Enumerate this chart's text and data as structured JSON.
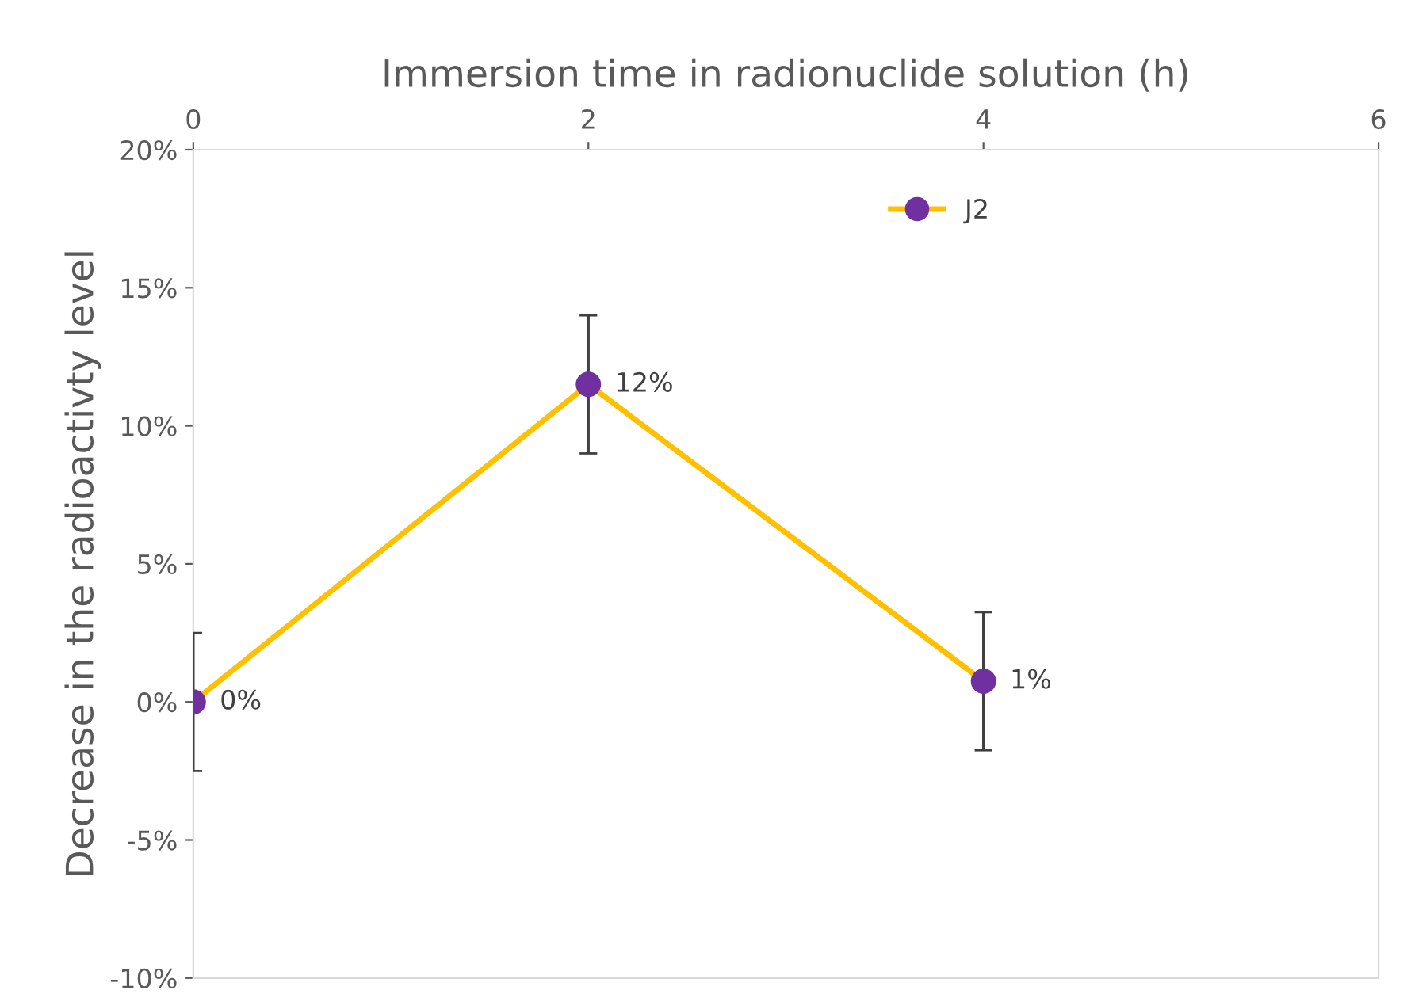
{
  "chart_data": {
    "type": "line",
    "xlabel": "Immersion time in radionuclide solution (h)",
    "ylabel": "Decrease in the radioactivty level",
    "x": [
      0,
      2,
      4
    ],
    "series": [
      {
        "name": "J2",
        "color": "#ffc000",
        "colors": [
          "#7030a0",
          "#7030a0",
          "#7030a0"
        ],
        "values": [
          0,
          11.5,
          0.75
        ],
        "errors": [
          2.5,
          2.5,
          2.5
        ],
        "value_labels": [
          "0%",
          "12%",
          "1%"
        ]
      }
    ],
    "xlim": [
      0,
      6
    ],
    "xticks": [
      0,
      2,
      4,
      6
    ],
    "ylim": [
      -10,
      20
    ],
    "yticks": [
      {
        "value": -10,
        "label": "-10%"
      },
      {
        "value": -5,
        "label": "-5%"
      },
      {
        "value": 0,
        "label": "0%"
      },
      {
        "value": 5,
        "label": "5%"
      },
      {
        "value": 10,
        "label": "10%"
      },
      {
        "value": 15,
        "label": "15%"
      },
      {
        "value": 20,
        "label": "20%"
      }
    ],
    "marker": "circle",
    "line_style": "solid",
    "legend": "top",
    "grid": false
  }
}
